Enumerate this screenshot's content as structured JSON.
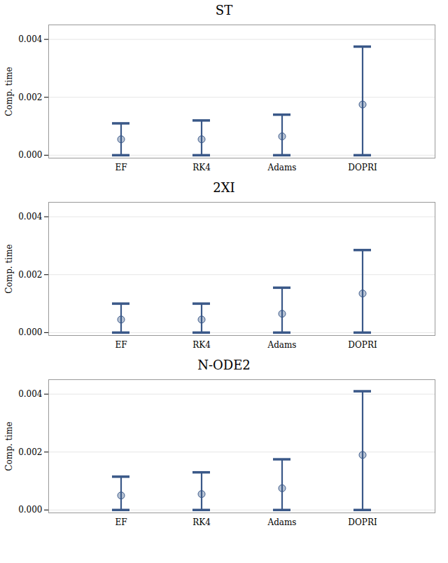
{
  "chart_data": [
    {
      "type": "range",
      "title": "ST",
      "ylabel": "Comp. time",
      "categories": [
        "EF",
        "RK4",
        "Adams",
        "DOPRI"
      ],
      "values": [
        0.00055,
        0.00055,
        0.00065,
        0.00175
      ],
      "mins": [
        0.0,
        0.0,
        0.0,
        0.0
      ],
      "maxs": [
        0.0011,
        0.0012,
        0.0014,
        0.00375
      ],
      "color": "#3a5888",
      "ylim": [
        -0.0001,
        0.0045
      ],
      "yticks": [
        {
          "value": 0,
          "label": "0.000"
        },
        0.002,
        0.004
      ],
      "grid": true
    },
    {
      "type": "range",
      "title": "2XI",
      "ylabel": "Comp. time",
      "categories": [
        "EF",
        "RK4",
        "Adams",
        "DOPRI"
      ],
      "values": [
        0.00045,
        0.00045,
        0.00065,
        0.00135
      ],
      "mins": [
        0.0,
        0.0,
        0.0,
        0.0
      ],
      "maxs": [
        0.001,
        0.001,
        0.00155,
        0.00285
      ],
      "color": "#3a5888",
      "ylim": [
        -0.0001,
        0.0045
      ],
      "yticks": [
        {
          "value": 0,
          "label": "0.000"
        },
        0.002,
        0.004
      ],
      "grid": true
    },
    {
      "type": "range",
      "title": "N-ODE2",
      "ylabel": "Comp. time",
      "categories": [
        "EF",
        "RK4",
        "Adams",
        "DOPRI"
      ],
      "values": [
        0.0005,
        0.00055,
        0.00075,
        0.0019
      ],
      "mins": [
        0.0,
        0.0,
        0.0,
        0.0
      ],
      "maxs": [
        0.00115,
        0.0013,
        0.00175,
        0.0041
      ],
      "color": "#3a5888",
      "ylim": [
        -0.0001,
        0.0045
      ],
      "yticks": [
        {
          "value": 0,
          "label": "0.000"
        },
        0.002,
        0.004
      ],
      "grid": true
    }
  ]
}
